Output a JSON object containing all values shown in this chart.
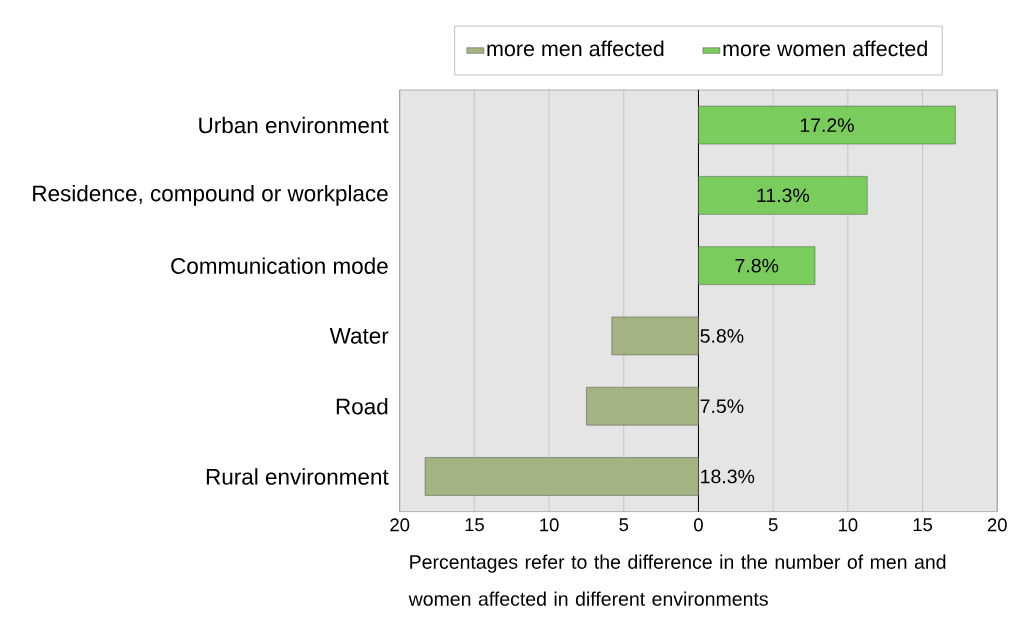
{
  "chart_data": {
    "type": "bar",
    "orientation": "horizontal",
    "categories": [
      "Urban environment",
      "Residence, compound or workplace",
      "Communication mode",
      "Water",
      "Road",
      "Rural environment"
    ],
    "series": [
      {
        "name": "more men affected",
        "color": "#a3b382",
        "values": [
          null,
          null,
          null,
          5.8,
          7.5,
          18.3
        ],
        "base": [
          null,
          null,
          null,
          -5.8,
          -7.5,
          -18.3
        ],
        "value_labels": [
          null,
          null,
          null,
          "5.8%",
          "7.5%",
          "18.3%"
        ]
      },
      {
        "name": "more women affected",
        "color": "#7acc5c",
        "values": [
          17.2,
          11.3,
          7.8,
          null,
          null,
          null
        ],
        "value_labels": [
          "17.2%",
          "11.3%",
          "7.8%",
          null,
          null,
          null
        ]
      }
    ],
    "xlim": [
      -20,
      20
    ],
    "xticks": [
      {
        "value": -20,
        "label": "20"
      },
      {
        "value": -15,
        "label": "15"
      },
      {
        "value": -10,
        "label": "10"
      },
      {
        "value": -5,
        "label": "5"
      },
      0,
      5,
      10,
      15,
      20
    ],
    "xlabel": "Percentages refer to the difference in the number of men and women affected in different environments",
    "grid": "x",
    "legend": "top"
  }
}
